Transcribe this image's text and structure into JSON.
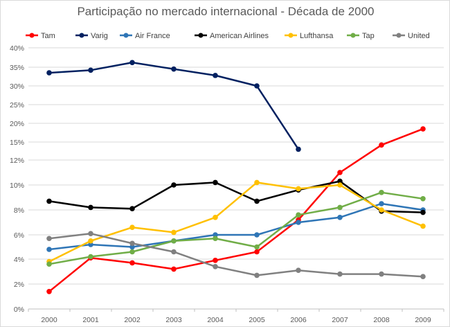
{
  "chart_data": {
    "type": "line",
    "title": "Participação no mercado internacional - Década de 2000",
    "xlabel": "",
    "ylabel": "",
    "categories": [
      "2000",
      "2001",
      "2002",
      "2003",
      "2004",
      "2005",
      "2006",
      "2007",
      "2008",
      "2009"
    ],
    "y_ticks": [
      {
        "label": "0%",
        "value": 0
      },
      {
        "label": "2%",
        "value": 2
      },
      {
        "label": "4%",
        "value": 4
      },
      {
        "label": "6%",
        "value": 6
      },
      {
        "label": "8%",
        "value": 8
      },
      {
        "label": "10%",
        "value": 10
      },
      {
        "label": "12%",
        "value": 12
      },
      {
        "label": "15%",
        "value": 15
      },
      {
        "label": "20%",
        "value": 20
      },
      {
        "label": "25%",
        "value": 25
      },
      {
        "label": "30%",
        "value": 30
      },
      {
        "label": "35%",
        "value": 35
      },
      {
        "label": "40%",
        "value": 40
      }
    ],
    "ylim": [
      0,
      40
    ],
    "grid": true,
    "legend_position": "top",
    "series": [
      {
        "name": "Tam",
        "color": "#ff0000",
        "values": [
          1.4,
          4.1,
          3.7,
          3.2,
          3.9,
          4.6,
          7.2,
          11.0,
          14.5,
          18.5
        ]
      },
      {
        "name": "Varig",
        "color": "#002060",
        "values": [
          33.5,
          34.2,
          36.2,
          34.5,
          32.8,
          30.0,
          13.8,
          null,
          null,
          null
        ]
      },
      {
        "name": "Air France",
        "color": "#2e75b6",
        "values": [
          4.8,
          5.2,
          5.0,
          5.5,
          6.0,
          6.0,
          7.0,
          7.4,
          8.5,
          8.0
        ]
      },
      {
        "name": "American Airlines",
        "color": "#000000",
        "values": [
          8.7,
          8.2,
          8.1,
          10.0,
          10.2,
          8.7,
          9.6,
          10.3,
          7.9,
          7.8
        ]
      },
      {
        "name": "Lufthansa",
        "color": "#ffc000",
        "values": [
          3.8,
          5.5,
          6.6,
          6.2,
          7.4,
          10.2,
          9.7,
          10.0,
          8.0,
          6.7
        ]
      },
      {
        "name": "Tap",
        "color": "#70ad47",
        "values": [
          3.6,
          4.2,
          4.6,
          5.5,
          5.7,
          5.0,
          7.6,
          8.2,
          9.4,
          8.9
        ]
      },
      {
        "name": "United",
        "color": "#808080",
        "values": [
          5.7,
          6.1,
          5.3,
          4.6,
          3.4,
          2.7,
          3.1,
          2.8,
          2.8,
          2.6
        ]
      }
    ]
  }
}
